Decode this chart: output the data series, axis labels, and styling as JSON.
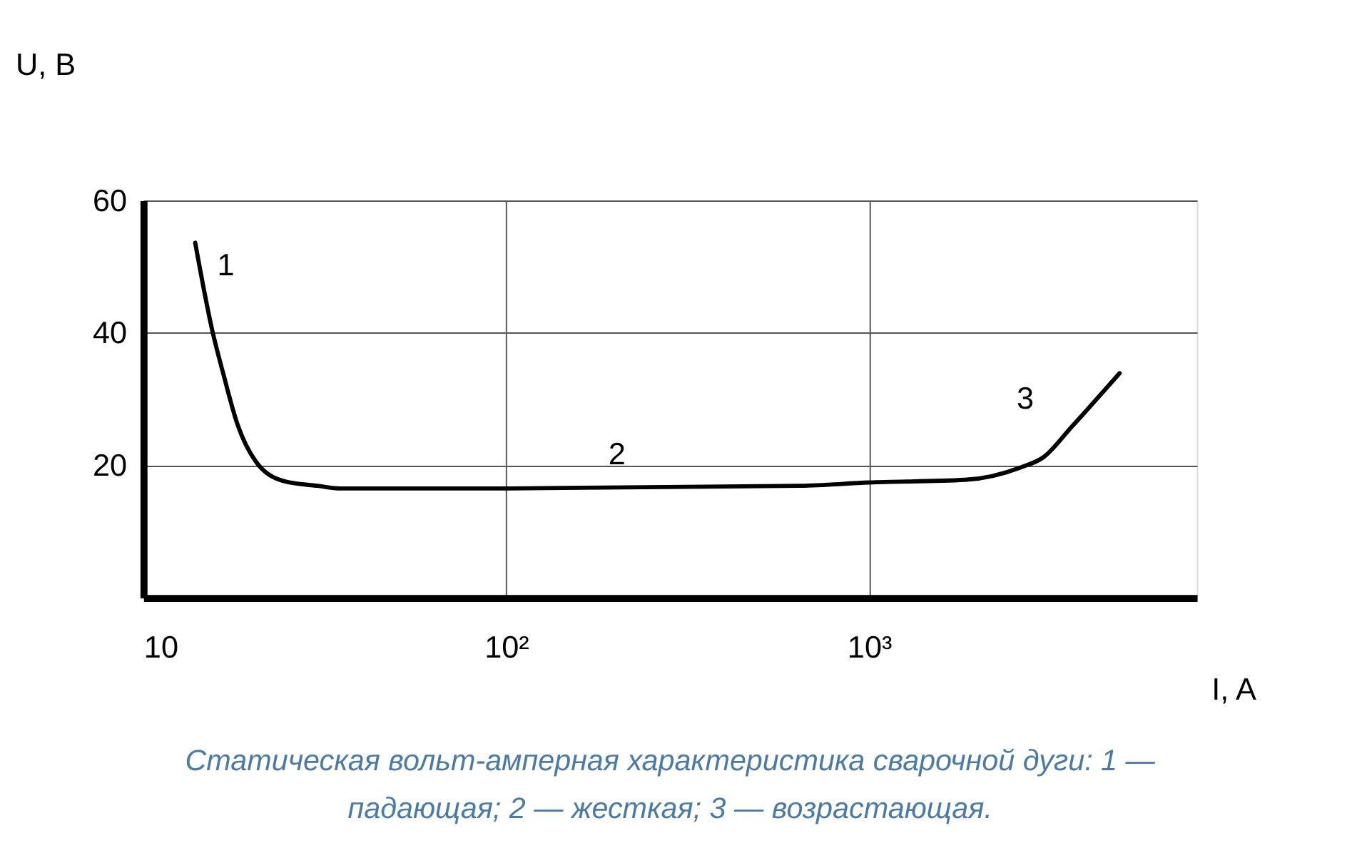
{
  "chart_data": {
    "type": "line",
    "xlabel": "I, A",
    "ylabel": "U, B",
    "log": "x",
    "grid": true,
    "marker": "none",
    "line_style": "solid",
    "xlim": [
      10,
      8000
    ],
    "xticks": [
      10,
      {
        "value": 100,
        "label": "10²"
      },
      {
        "value": 1000,
        "label": "10³"
      }
    ],
    "ylim": [
      0,
      60
    ],
    "yticks": [
      20,
      40,
      60
    ],
    "series": [
      {
        "color": "#000000",
        "x": [
          13.9,
          15.5,
          16.6,
          18.2,
          20.4,
          24.4,
          30.2,
          34.9,
          85,
          646,
          1000,
          1837,
          2622,
          3020,
          3615,
          4900
        ],
        "values": [
          53.6,
          40.3,
          33.9,
          26.1,
          20.6,
          17.6,
          16.9,
          16.5,
          16.5,
          16.9,
          17.4,
          17.8,
          19.7,
          21.2,
          25.8,
          33.9
        ]
      }
    ],
    "annotations": [
      {
        "text": "1",
        "x": 14.9,
        "y": 45.5
      },
      {
        "text": "2",
        "x": 202,
        "y": 17
      },
      {
        "text": "3",
        "x": 3520,
        "y": 25.4
      },
      "Статическая вольт-амперная характеристика сварочной дуги: 1 — падающая; 2 — жесткая; 3 — возрастающая."
    ]
  }
}
